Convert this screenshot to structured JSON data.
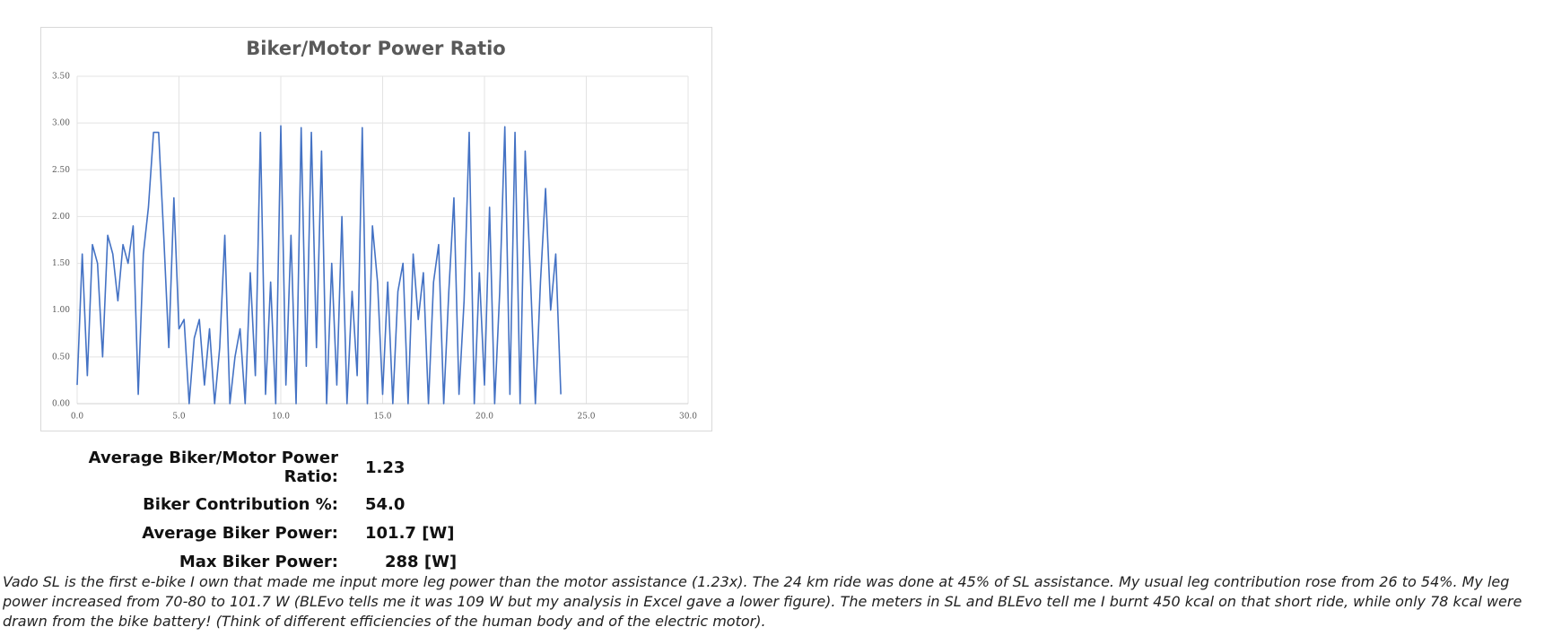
{
  "chart_data": {
    "type": "line",
    "title": "Biker/Motor Power Ratio",
    "x": [
      0,
      0.25,
      0.5,
      0.75,
      1,
      1.25,
      1.5,
      1.75,
      2,
      2.25,
      2.5,
      2.75,
      3,
      3.25,
      3.5,
      3.75,
      4,
      4.25,
      4.5,
      4.75,
      5,
      5.25,
      5.5,
      5.75,
      6,
      6.25,
      6.5,
      6.75,
      7,
      7.25,
      7.5,
      7.75,
      8,
      8.25,
      8.5,
      8.75,
      9,
      9.25,
      9.5,
      9.75,
      10,
      10.25,
      10.5,
      10.75,
      11,
      11.25,
      11.5,
      11.75,
      12,
      12.25,
      12.5,
      12.75,
      13,
      13.25,
      13.5,
      13.75,
      14,
      14.25,
      14.5,
      14.75,
      15,
      15.25,
      15.5,
      15.75,
      16,
      16.25,
      16.5,
      16.75,
      17,
      17.25,
      17.5,
      17.75,
      18,
      18.25,
      18.5,
      18.75,
      19,
      19.25,
      19.5,
      19.75,
      20,
      20.25,
      20.5,
      20.75,
      21,
      21.25,
      21.5,
      21.75,
      22,
      22.25,
      22.5,
      22.75,
      23,
      23.25,
      23.5,
      23.75
    ],
    "series": [
      {
        "color": "#4472c4",
        "values": [
          0.2,
          1.6,
          0.3,
          1.7,
          1.5,
          0.5,
          1.8,
          1.6,
          1.1,
          1.7,
          1.5,
          1.9,
          0.1,
          1.6,
          2.1,
          2.9,
          2.9,
          1.8,
          0.6,
          2.2,
          0.8,
          0.9,
          0.0,
          0.7,
          0.9,
          0.2,
          0.8,
          0.0,
          0.6,
          1.8,
          0.0,
          0.5,
          0.8,
          0.0,
          1.4,
          0.3,
          2.9,
          0.1,
          1.3,
          0.0,
          2.97,
          0.2,
          1.8,
          0.0,
          2.95,
          0.4,
          2.9,
          0.6,
          2.7,
          0.0,
          1.5,
          0.2,
          2.0,
          0.0,
          1.2,
          0.3,
          2.95,
          0.0,
          1.9,
          1.3,
          0.1,
          1.3,
          0.0,
          1.2,
          1.5,
          0.0,
          1.6,
          0.9,
          1.4,
          0.0,
          1.3,
          1.7,
          0.0,
          1.2,
          2.2,
          0.1,
          1.1,
          2.9,
          0.0,
          1.4,
          0.2,
          2.1,
          0.0,
          1.2,
          2.96,
          0.1,
          2.9,
          0.0,
          2.7,
          1.4,
          0.0,
          1.3,
          2.3,
          1.0,
          1.6,
          0.1
        ]
      }
    ],
    "xlim": [
      0,
      30
    ],
    "ylim": [
      0,
      3.5
    ],
    "xticks": [
      {
        "value": 0,
        "label": "0.0"
      },
      {
        "value": 5,
        "label": "5.0"
      },
      {
        "value": 10,
        "label": "10.0"
      },
      {
        "value": 15,
        "label": "15.0"
      },
      {
        "value": 20,
        "label": "20.0"
      },
      {
        "value": 25,
        "label": "25.0"
      },
      {
        "value": 30,
        "label": "30.0"
      }
    ],
    "yticks": [
      {
        "value": 0,
        "label": "0.00"
      },
      {
        "value": 0.5,
        "label": "0.50"
      },
      {
        "value": 1,
        "label": "1.00"
      },
      {
        "value": 1.5,
        "label": "1.50"
      },
      {
        "value": 2,
        "label": "2.00"
      },
      {
        "value": 2.5,
        "label": "2.50"
      },
      {
        "value": 3,
        "label": "3.00"
      },
      {
        "value": 3.5,
        "label": "3.50"
      }
    ],
    "grid": true
  },
  "stats": [
    {
      "label": "Average Biker/Motor Power Ratio:",
      "value": "1.23"
    },
    {
      "label": "Biker Contribution %:",
      "value": "54.0"
    },
    {
      "label": "Average Biker Power:",
      "value": "101.7 [W]"
    },
    {
      "label": "Max Biker Power:",
      "value": "288 [W]"
    }
  ],
  "caption": "Vado SL is the first e-bike I own that made me input more leg power than the motor assistance (1.23x). The 24 km ride was done at 45% of SL assistance. My usual leg contribution rose from 26 to 54%. My leg power increased from 70-80 to 101.7 W (BLEvo tells me it was 109 W but my analysis in Excel gave a lower figure). The meters in SL and BLEvo tell me I burnt 450 kcal on that short ride, while only 78 kcal were drawn from the bike battery! (Think of different efficiencies of the human body and of the electric motor)."
}
